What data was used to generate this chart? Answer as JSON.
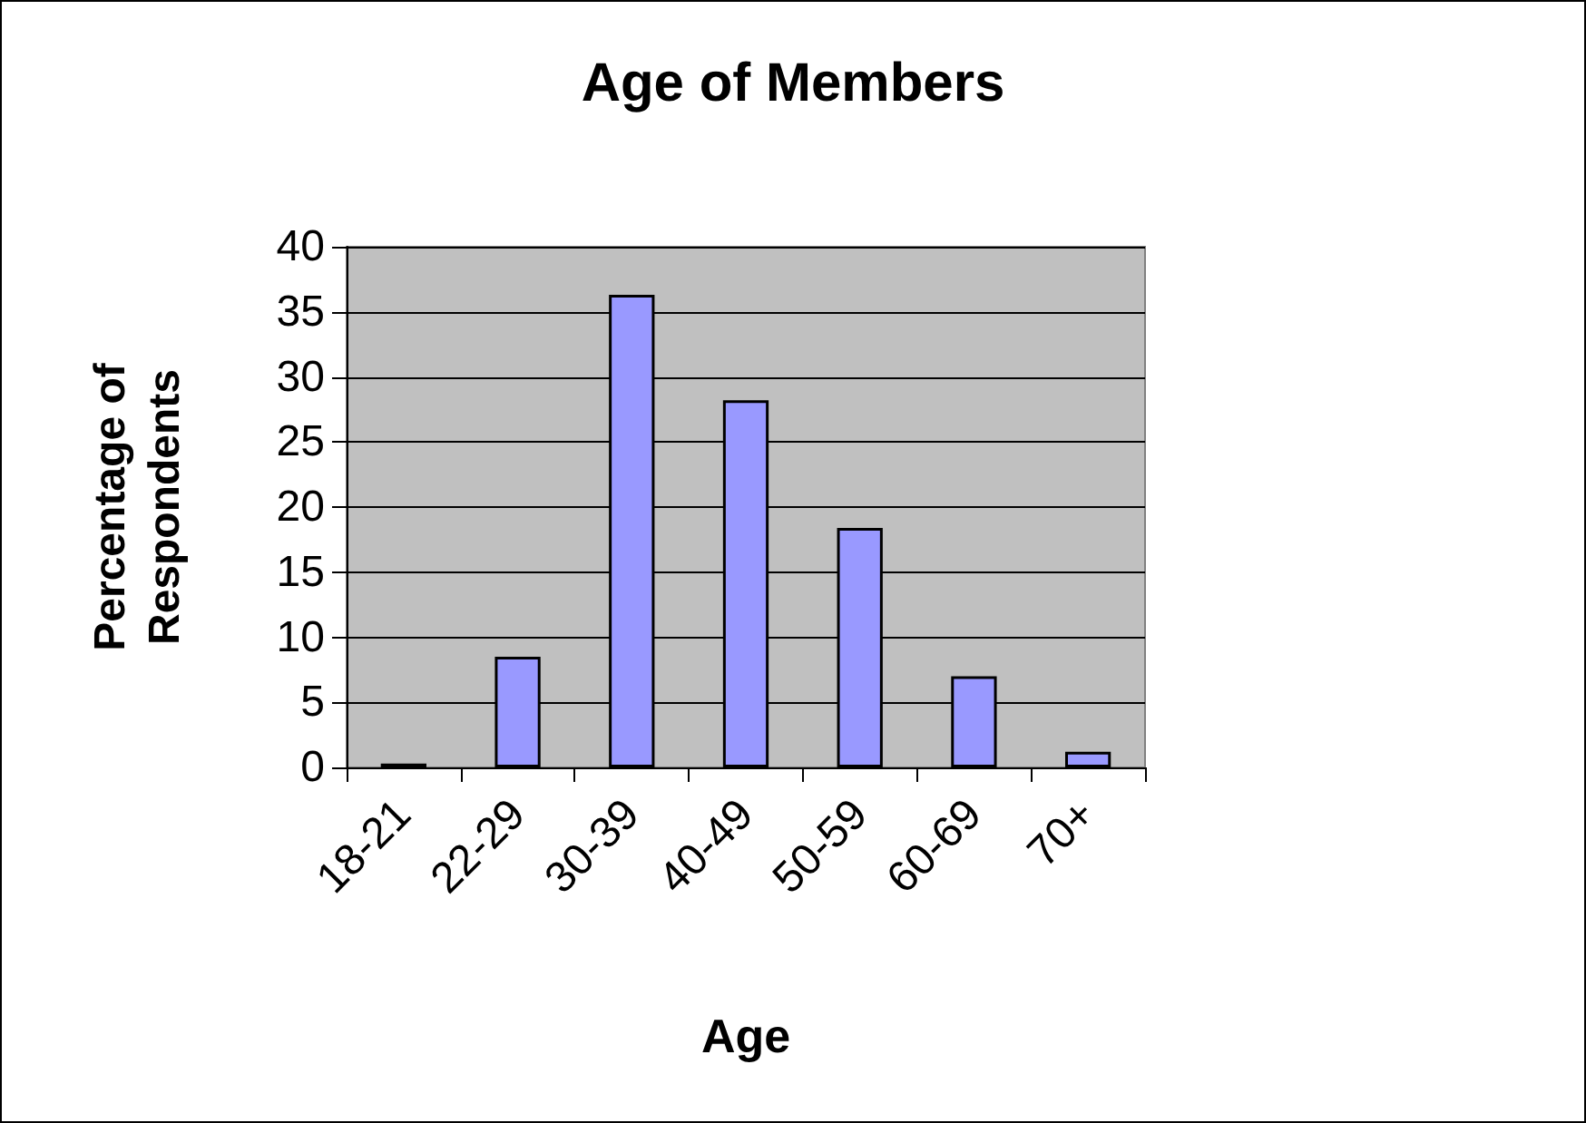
{
  "chart_data": {
    "type": "bar",
    "title": "Age of Members",
    "xlabel": "Age",
    "ylabel": "Percentage of Respondents",
    "categories": [
      "18-21",
      "22-29",
      "30-39",
      "40-49",
      "50-59",
      "60-69",
      "70+"
    ],
    "values": [
      0.3,
      8.5,
      36.3,
      28.2,
      18.4,
      7.0,
      1.2
    ],
    "color": "#9999ff",
    "ylim": [
      0,
      40
    ],
    "yticks": [
      0,
      5,
      10,
      15,
      20,
      25,
      30,
      35,
      40
    ],
    "grid": "y"
  }
}
